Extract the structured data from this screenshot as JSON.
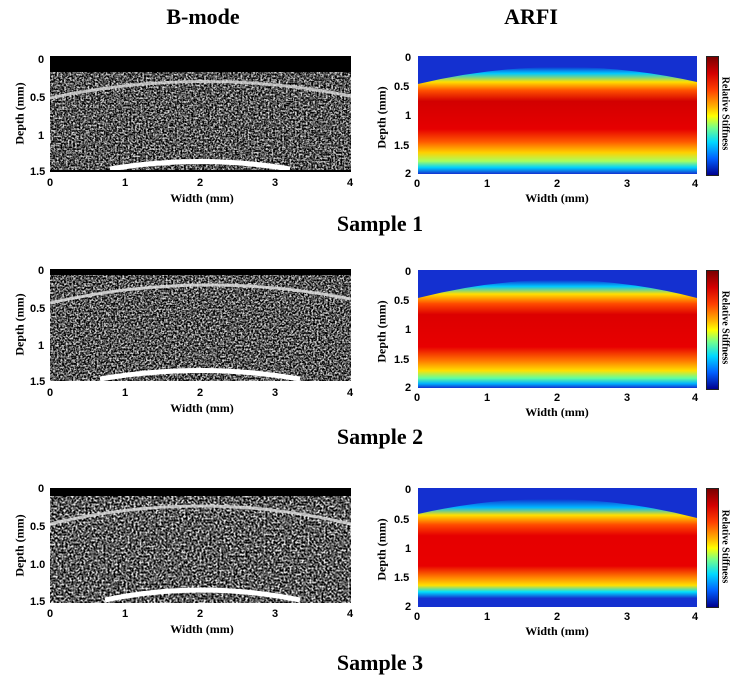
{
  "columns": {
    "bmode": "B-mode",
    "arfi": "ARFI"
  },
  "axes": {
    "xlabel": "Width (mm)",
    "ylabel": "Depth (mm)",
    "x_ticks": [
      "0",
      "1",
      "2",
      "3",
      "4"
    ],
    "bmode_y_ticks_1": [
      "0",
      "0.5",
      "1",
      "1.5"
    ],
    "bmode_y_ticks_2": [
      "0",
      "0.5",
      "1",
      "1.5"
    ],
    "bmode_y_ticks_3": [
      "0",
      "0.5",
      "1.0",
      "1.5"
    ],
    "arfi_y_ticks": [
      "0",
      "0.5",
      "1",
      "1.5",
      "2"
    ],
    "colorbar_label": "Relative Stiffness"
  },
  "samples": [
    {
      "label": "Sample 1"
    },
    {
      "label": "Sample 2"
    },
    {
      "label": "Sample 3"
    }
  ],
  "colors": {
    "heat_top": "#1a2bd6",
    "heat_core": "#e30000",
    "heat_edge": "#ffd000"
  }
}
